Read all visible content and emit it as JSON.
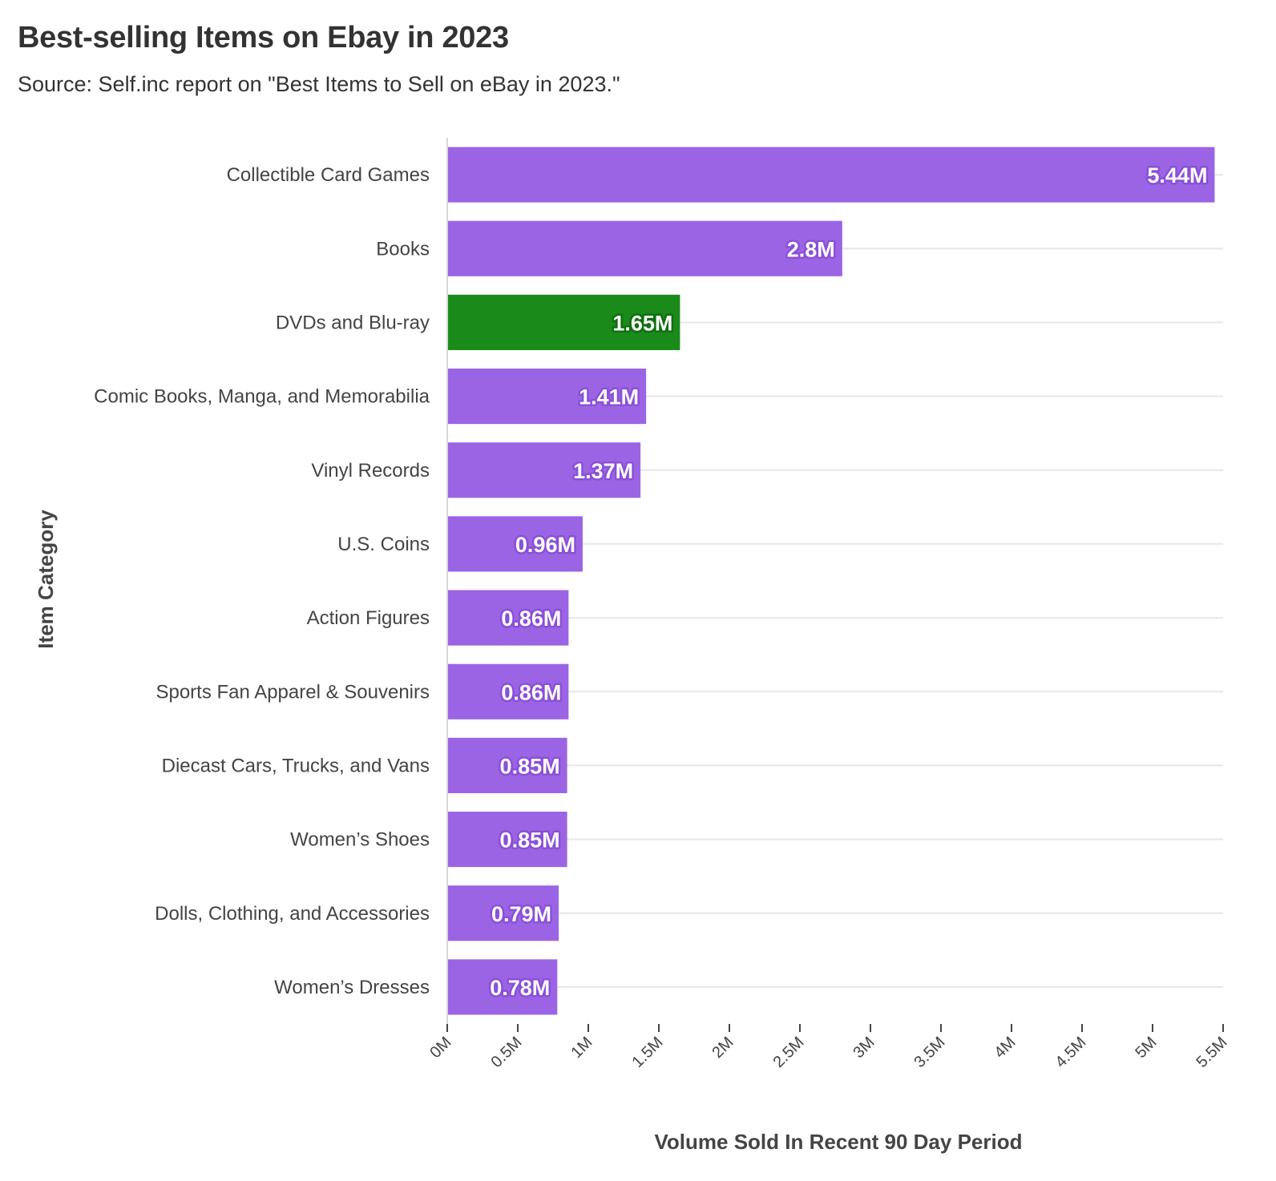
{
  "chart_data": {
    "type": "bar",
    "orientation": "horizontal",
    "title": "Best-selling Items on Ebay in 2023",
    "subtitle": "Source: Self.inc report on \"Best Items to Sell on eBay in 2023.\"",
    "xlabel": "Volume Sold In Recent 90 Day Period",
    "ylabel": "Item Category",
    "xlim": [
      0,
      5.5
    ],
    "x_ticks": [
      0,
      0.5,
      1,
      1.5,
      2,
      2.5,
      3,
      3.5,
      4,
      4.5,
      5,
      5.5
    ],
    "x_tick_labels": [
      "0M",
      "0.5M",
      "1M",
      "1.5M",
      "2M",
      "2.5M",
      "3M",
      "3.5M",
      "4M",
      "4.5M",
      "5M",
      "5.5M"
    ],
    "grid": "horizontal",
    "categories": [
      "Collectible Card Games",
      "Books",
      "DVDs and Blu-ray",
      "Comic Books, Manga, and Memorabilia",
      "Vinyl Records",
      "U.S. Coins",
      "Action Figures",
      "Sports Fan Apparel & Souvenirs",
      "Diecast Cars, Trucks, and Vans",
      "Women’s Shoes",
      "Dolls, Clothing, and Accessories",
      "Women’s Dresses"
    ],
    "values": [
      5.44,
      2.8,
      1.65,
      1.41,
      1.37,
      0.96,
      0.86,
      0.86,
      0.85,
      0.85,
      0.79,
      0.78
    ],
    "data_labels": [
      "5.44M",
      "2.8M",
      "1.65M",
      "1.41M",
      "1.37M",
      "0.96M",
      "0.86M",
      "0.86M",
      "0.85M",
      "0.85M",
      "0.79M",
      "0.78M"
    ],
    "colors": {
      "default": "#9b64e4",
      "highlight": "#1a8a1a",
      "highlight_index": 2,
      "label_outline_default": "#8a4fd8",
      "label_outline_highlight": "#0f6e0f",
      "gridline": "#e6e6e6"
    }
  }
}
